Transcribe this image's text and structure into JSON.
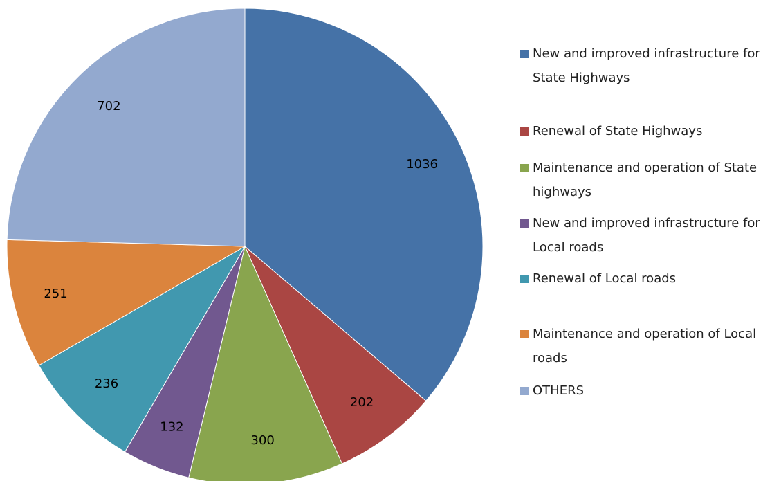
{
  "chart_data": {
    "type": "pie",
    "categories": [
      "New and improved infrastructure for State Highways",
      "Renewal of State Highways",
      "Maintenance and operation of State highways",
      "New and improved infrastructure for Local roads",
      "Renewal of Local roads",
      "Maintenance and operation of Local roads",
      "OTHERS"
    ],
    "values": [
      1036,
      202,
      300,
      132,
      236,
      251,
      702
    ],
    "colors": [
      "#4572a7",
      "#aa4643",
      "#89a54e",
      "#71588f",
      "#4198af",
      "#db843d",
      "#93a9cf"
    ],
    "legend": "right"
  }
}
